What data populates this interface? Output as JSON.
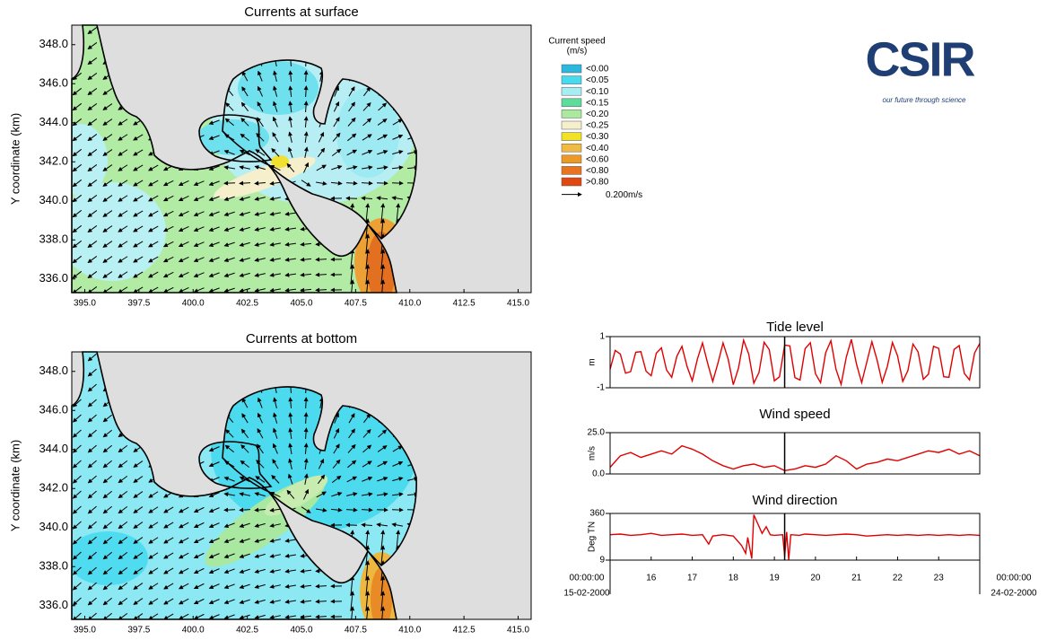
{
  "maps": [
    {
      "title": "Currents at surface",
      "ylabel": "Y coordinate (km)",
      "xlim": [
        394.4,
        415.6
      ],
      "ylim": [
        335.3,
        349.0
      ],
      "xticks": [
        {
          "value": 395,
          "label": "395.0"
        },
        {
          "value": 397.5,
          "label": "397.5"
        },
        {
          "value": 400,
          "label": "400.0"
        },
        {
          "value": 402.5,
          "label": "402.5"
        },
        {
          "value": 405,
          "label": "405.0"
        },
        {
          "value": 407.5,
          "label": "407.5"
        },
        {
          "value": 410,
          "label": "410.0"
        },
        {
          "value": 412.5,
          "label": "412.5"
        },
        {
          "value": 415,
          "label": "415.0"
        }
      ],
      "yticks": [
        {
          "value": 336,
          "label": "336.0"
        },
        {
          "value": 338,
          "label": "338.0"
        },
        {
          "value": 340,
          "label": "340.0"
        },
        {
          "value": 342,
          "label": "342.0"
        },
        {
          "value": 344,
          "label": "344.0"
        },
        {
          "value": 346,
          "label": "346.0"
        },
        {
          "value": 348,
          "label": "348.0"
        }
      ]
    },
    {
      "title": "Currents at bottom",
      "ylabel": "Y coordinate (km)",
      "xlim": [
        394.4,
        415.6
      ],
      "ylim": [
        335.3,
        349.0
      ],
      "xticks": [
        {
          "value": 395,
          "label": "395.0"
        },
        {
          "value": 397.5,
          "label": "397.5"
        },
        {
          "value": 400,
          "label": "400.0"
        },
        {
          "value": 402.5,
          "label": "402.5"
        },
        {
          "value": 405,
          "label": "405.0"
        },
        {
          "value": 407.5,
          "label": "407.5"
        },
        {
          "value": 410,
          "label": "410.0"
        },
        {
          "value": 412.5,
          "label": "412.5"
        },
        {
          "value": 415,
          "label": "415.0"
        }
      ],
      "yticks": [
        {
          "value": 336,
          "label": "336.0"
        },
        {
          "value": 338,
          "label": "338.0"
        },
        {
          "value": 340,
          "label": "340.0"
        },
        {
          "value": 342,
          "label": "342.0"
        },
        {
          "value": 344,
          "label": "344.0"
        },
        {
          "value": 346,
          "label": "346.0"
        },
        {
          "value": 348,
          "label": "348.0"
        }
      ]
    }
  ],
  "legend": {
    "title": "Current speed",
    "unit": "(m/s)",
    "items": [
      {
        "label": "<0.00",
        "color": "#2cb8de"
      },
      {
        "label": "<0.05",
        "color": "#45dcf0"
      },
      {
        "label": "<0.10",
        "color": "#a6eef4"
      },
      {
        "label": "<0.15",
        "color": "#5edc9c"
      },
      {
        "label": "<0.20",
        "color": "#aaea9c"
      },
      {
        "label": "<0.25",
        "color": "#f5f0cb"
      },
      {
        "label": "<0.30",
        "color": "#f2e226"
      },
      {
        "label": "<0.40",
        "color": "#f0ba45"
      },
      {
        "label": "<0.60",
        "color": "#ec9a25"
      },
      {
        "label": "<0.80",
        "color": "#e87422"
      },
      {
        "label": ">0.80",
        "color": "#e04812"
      }
    ],
    "reference": "0.200m/s"
  },
  "logo": {
    "name": "CSIR",
    "tagline": "our future through science"
  },
  "chart_data": [
    {
      "type": "line",
      "title": "Tide level",
      "ylabel": "m",
      "color": "#e00000",
      "xlim": [
        15,
        24
      ],
      "ylim": [
        -1,
        1
      ],
      "yticks": [
        -1,
        1
      ],
      "marker_x": 19.25,
      "x": [
        15,
        15.125,
        15.25,
        15.375,
        15.5,
        15.625,
        15.75,
        15.875,
        16,
        16.125,
        16.25,
        16.375,
        16.5,
        16.625,
        16.75,
        16.875,
        17,
        17.125,
        17.25,
        17.375,
        17.5,
        17.625,
        17.75,
        17.875,
        18,
        18.125,
        18.25,
        18.375,
        18.5,
        18.625,
        18.75,
        18.875,
        19,
        19.125,
        19.25,
        19.375,
        19.5,
        19.625,
        19.75,
        19.875,
        20,
        20.125,
        20.25,
        20.375,
        20.5,
        20.625,
        20.75,
        20.875,
        21,
        21.125,
        21.25,
        21.375,
        21.5,
        21.625,
        21.75,
        21.875,
        22,
        22.125,
        22.25,
        22.375,
        22.5,
        22.625,
        22.75,
        22.875,
        23,
        23.125,
        23.25,
        23.375,
        23.5,
        23.625,
        23.75,
        23.875,
        24
      ],
      "values": [
        -0.28,
        0.46,
        0.32,
        -0.43,
        -0.37,
        0.39,
        0.41,
        -0.35,
        -0.53,
        0.35,
        0.56,
        -0.3,
        -0.59,
        0.23,
        0.62,
        -0.17,
        -0.73,
        0.12,
        0.75,
        -0.04,
        -0.75,
        -0.04,
        0.75,
        0.12,
        -0.88,
        -0.23,
        0.86,
        0.32,
        -0.82,
        -0.41,
        0.78,
        0.49,
        -0.73,
        -0.57,
        0.67,
        0.64,
        -0.6,
        -0.7,
        0.53,
        0.76,
        -0.45,
        -0.8,
        0.37,
        0.84,
        -0.28,
        -0.87,
        0.19,
        0.89,
        -0.08,
        -0.8,
        0,
        0.8,
        0.08,
        -0.79,
        -0.17,
        0.77,
        0.25,
        -0.75,
        -0.33,
        0.71,
        0.4,
        -0.67,
        -0.47,
        0.62,
        0.54,
        -0.57,
        -0.59,
        0.5,
        0.65,
        -0.44,
        -0.69,
        0.36,
        0.73
      ]
    },
    {
      "type": "line",
      "title": "Wind speed",
      "ylabel": "m/s",
      "color": "#e00000",
      "xlim": [
        15,
        24
      ],
      "ylim": [
        0,
        25
      ],
      "yticks": [
        {
          "value": 0,
          "label": "0.0"
        },
        {
          "value": 25,
          "label": "25.0"
        }
      ],
      "marker_x": 19.25,
      "x": [
        15,
        15.25,
        15.5,
        15.75,
        16,
        16.25,
        16.5,
        16.75,
        17,
        17.25,
        17.5,
        17.75,
        18,
        18.25,
        18.5,
        18.75,
        19,
        19.25,
        19.5,
        19.75,
        20,
        20.25,
        20.5,
        20.75,
        21,
        21.25,
        21.5,
        21.75,
        22,
        22.25,
        22.5,
        22.75,
        23,
        23.25,
        23.5,
        23.75,
        24
      ],
      "values": [
        4,
        11,
        13,
        10,
        12,
        14,
        12,
        17,
        15,
        12,
        8,
        5,
        3,
        5,
        6,
        4,
        5,
        2,
        3,
        5,
        4,
        6,
        11,
        8,
        3,
        6,
        7,
        9,
        8,
        10,
        12,
        14,
        13,
        15,
        12,
        14,
        11
      ]
    },
    {
      "type": "line",
      "title": "Wind direction",
      "ylabel": "Deg TN",
      "color": "#e00000",
      "xlim": [
        15,
        24
      ],
      "ylim": [
        9,
        360
      ],
      "yticks": [
        9,
        360
      ],
      "marker_x": 19.25,
      "xticks": [
        {
          "value": 15,
          "label": "00:00:00",
          "date": "15-02-2000"
        },
        16,
        17,
        18,
        19,
        20,
        21,
        22,
        23,
        {
          "value": 24,
          "label": "00:00:00",
          "date": "24-02-2000"
        }
      ],
      "x": [
        15,
        15.25,
        15.5,
        15.75,
        16,
        16.25,
        16.5,
        16.75,
        17,
        17.25,
        17.4,
        17.5,
        17.75,
        18,
        18.2,
        18.3,
        18.35,
        18.45,
        18.5,
        18.6,
        18.7,
        18.8,
        18.9,
        19,
        19.2,
        19.25,
        19.3,
        19.35,
        19.4,
        19.6,
        19.75,
        20,
        20.25,
        20.5,
        20.75,
        21,
        21.25,
        21.5,
        21.75,
        22,
        22.25,
        22.5,
        22.75,
        23,
        23.25,
        23.5,
        23.75,
        24
      ],
      "values": [
        200,
        205,
        195,
        200,
        210,
        195,
        200,
        205,
        195,
        200,
        130,
        190,
        200,
        190,
        120,
        60,
        180,
        20,
        350,
        280,
        210,
        260,
        200,
        195,
        200,
        40,
        220,
        9,
        200,
        195,
        205,
        200,
        195,
        200,
        205,
        200,
        190,
        195,
        200,
        195,
        200,
        195,
        200,
        195,
        200,
        195,
        200,
        195
      ]
    }
  ]
}
